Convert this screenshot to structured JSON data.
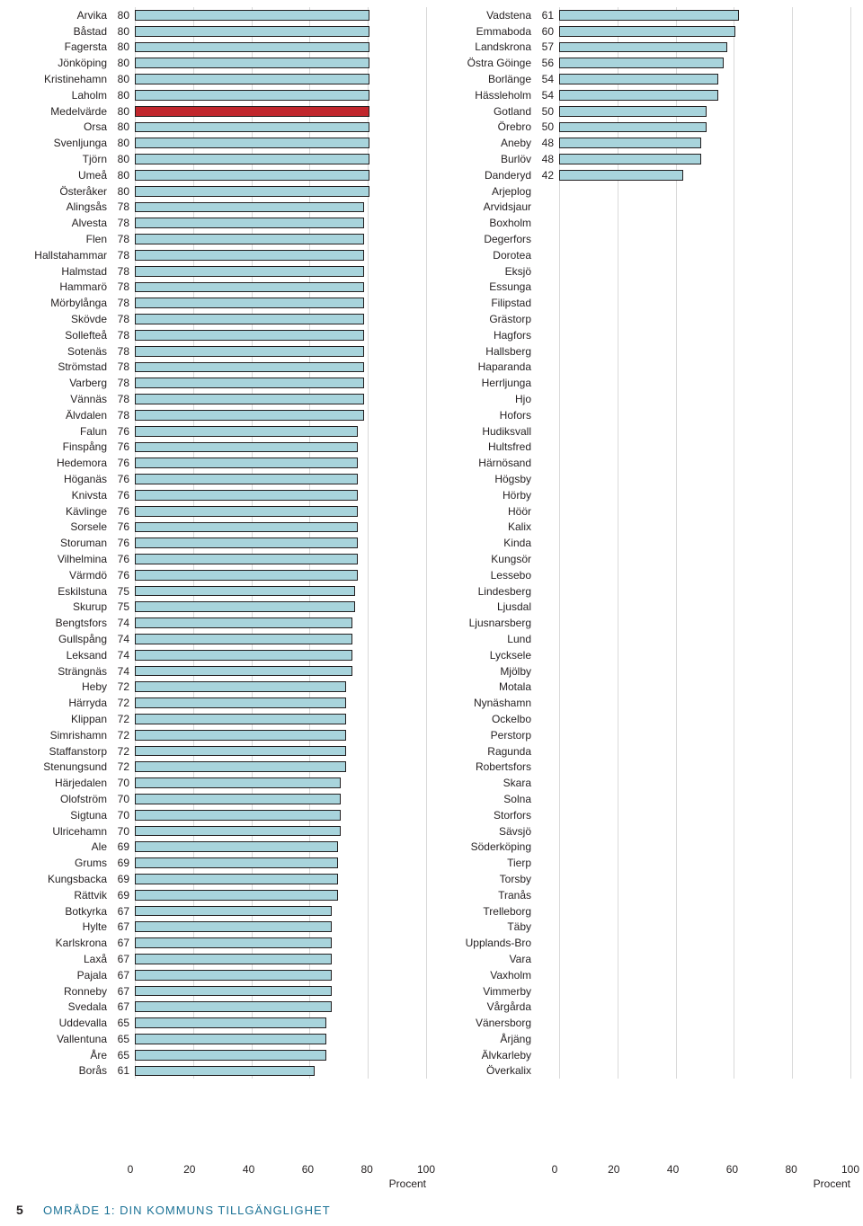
{
  "colors": {
    "bar_fill": "#a8d4dc",
    "bar_highlight": "#c1272d",
    "bar_border": "#231f20",
    "grid": "#d9d9d9",
    "text": "#231f20",
    "title": "#1b7296",
    "background": "#ffffff"
  },
  "axis": {
    "ticks": [
      0,
      20,
      40,
      60,
      80,
      100
    ],
    "xlim": [
      0,
      100
    ],
    "xlabel": "Procent",
    "fontsize": 12
  },
  "footer": {
    "page_number": "5",
    "title": "OMRÅDE 1: DIN KOMMUNS TILLGÄNGLIGHET"
  },
  "left_chart": {
    "type": "bar",
    "rows": [
      {
        "label": "Arvika",
        "value": 80
      },
      {
        "label": "Båstad",
        "value": 80
      },
      {
        "label": "Fagersta",
        "value": 80
      },
      {
        "label": "Jönköping",
        "value": 80
      },
      {
        "label": "Kristinehamn",
        "value": 80
      },
      {
        "label": "Laholm",
        "value": 80
      },
      {
        "label": "Medelvärde",
        "value": 80,
        "highlight": true
      },
      {
        "label": "Orsa",
        "value": 80
      },
      {
        "label": "Svenljunga",
        "value": 80
      },
      {
        "label": "Tjörn",
        "value": 80
      },
      {
        "label": "Umeå",
        "value": 80
      },
      {
        "label": "Österåker",
        "value": 80
      },
      {
        "label": "Alingsås",
        "value": 78
      },
      {
        "label": "Alvesta",
        "value": 78
      },
      {
        "label": "Flen",
        "value": 78
      },
      {
        "label": "Hallstahammar",
        "value": 78
      },
      {
        "label": "Halmstad",
        "value": 78
      },
      {
        "label": "Hammarö",
        "value": 78
      },
      {
        "label": "Mörbylånga",
        "value": 78
      },
      {
        "label": "Skövde",
        "value": 78
      },
      {
        "label": "Sollefteå",
        "value": 78
      },
      {
        "label": "Sotenäs",
        "value": 78
      },
      {
        "label": "Strömstad",
        "value": 78
      },
      {
        "label": "Varberg",
        "value": 78
      },
      {
        "label": "Vännäs",
        "value": 78
      },
      {
        "label": "Älvdalen",
        "value": 78
      },
      {
        "label": "Falun",
        "value": 76
      },
      {
        "label": "Finspång",
        "value": 76
      },
      {
        "label": "Hedemora",
        "value": 76
      },
      {
        "label": "Höganäs",
        "value": 76
      },
      {
        "label": "Knivsta",
        "value": 76
      },
      {
        "label": "Kävlinge",
        "value": 76
      },
      {
        "label": "Sorsele",
        "value": 76
      },
      {
        "label": "Storuman",
        "value": 76
      },
      {
        "label": "Vilhelmina",
        "value": 76
      },
      {
        "label": "Värmdö",
        "value": 76
      },
      {
        "label": "Eskilstuna",
        "value": 75
      },
      {
        "label": "Skurup",
        "value": 75
      },
      {
        "label": "Bengtsfors",
        "value": 74
      },
      {
        "label": "Gullspång",
        "value": 74
      },
      {
        "label": "Leksand",
        "value": 74
      },
      {
        "label": "Strängnäs",
        "value": 74
      },
      {
        "label": "Heby",
        "value": 72
      },
      {
        "label": "Härryda",
        "value": 72
      },
      {
        "label": "Klippan",
        "value": 72
      },
      {
        "label": "Simrishamn",
        "value": 72
      },
      {
        "label": "Staffanstorp",
        "value": 72
      },
      {
        "label": "Stenungsund",
        "value": 72
      },
      {
        "label": "Härjedalen",
        "value": 70
      },
      {
        "label": "Olofström",
        "value": 70
      },
      {
        "label": "Sigtuna",
        "value": 70
      },
      {
        "label": "Ulricehamn",
        "value": 70
      },
      {
        "label": "Ale",
        "value": 69
      },
      {
        "label": "Grums",
        "value": 69
      },
      {
        "label": "Kungsbacka",
        "value": 69
      },
      {
        "label": "Rättvik",
        "value": 69
      },
      {
        "label": "Botkyrka",
        "value": 67
      },
      {
        "label": "Hylte",
        "value": 67
      },
      {
        "label": "Karlskrona",
        "value": 67
      },
      {
        "label": "Laxå",
        "value": 67
      },
      {
        "label": "Pajala",
        "value": 67
      },
      {
        "label": "Ronneby",
        "value": 67
      },
      {
        "label": "Svedala",
        "value": 67
      },
      {
        "label": "Uddevalla",
        "value": 65
      },
      {
        "label": "Vallentuna",
        "value": 65
      },
      {
        "label": "Åre",
        "value": 65
      },
      {
        "label": "Borås",
        "value": 61
      }
    ]
  },
  "right_chart": {
    "type": "bar",
    "rows": [
      {
        "label": "Vadstena",
        "value": 61
      },
      {
        "label": "Emmaboda",
        "value": 60
      },
      {
        "label": "Landskrona",
        "value": 57
      },
      {
        "label": "Östra Göinge",
        "value": 56
      },
      {
        "label": "Borlänge",
        "value": 54
      },
      {
        "label": "Hässleholm",
        "value": 54
      },
      {
        "label": "Gotland",
        "value": 50
      },
      {
        "label": "Örebro",
        "value": 50
      },
      {
        "label": "Aneby",
        "value": 48
      },
      {
        "label": "Burlöv",
        "value": 48
      },
      {
        "label": "Danderyd",
        "value": 42
      },
      {
        "label": "Arjeplog",
        "value": null
      },
      {
        "label": "Arvidsjaur",
        "value": null
      },
      {
        "label": "Boxholm",
        "value": null
      },
      {
        "label": "Degerfors",
        "value": null
      },
      {
        "label": "Dorotea",
        "value": null
      },
      {
        "label": "Eksjö",
        "value": null
      },
      {
        "label": "Essunga",
        "value": null
      },
      {
        "label": "Filipstad",
        "value": null
      },
      {
        "label": "Grästorp",
        "value": null
      },
      {
        "label": "Hagfors",
        "value": null
      },
      {
        "label": "Hallsberg",
        "value": null
      },
      {
        "label": "Haparanda",
        "value": null
      },
      {
        "label": "Herrljunga",
        "value": null
      },
      {
        "label": "Hjo",
        "value": null
      },
      {
        "label": "Hofors",
        "value": null
      },
      {
        "label": "Hudiksvall",
        "value": null
      },
      {
        "label": "Hultsfred",
        "value": null
      },
      {
        "label": "Härnösand",
        "value": null
      },
      {
        "label": "Högsby",
        "value": null
      },
      {
        "label": "Hörby",
        "value": null
      },
      {
        "label": "Höör",
        "value": null
      },
      {
        "label": "Kalix",
        "value": null
      },
      {
        "label": "Kinda",
        "value": null
      },
      {
        "label": "Kungsör",
        "value": null
      },
      {
        "label": "Lessebo",
        "value": null
      },
      {
        "label": "Lindesberg",
        "value": null
      },
      {
        "label": "Ljusdal",
        "value": null
      },
      {
        "label": "Ljusnarsberg",
        "value": null
      },
      {
        "label": "Lund",
        "value": null
      },
      {
        "label": "Lycksele",
        "value": null
      },
      {
        "label": "Mjölby",
        "value": null
      },
      {
        "label": "Motala",
        "value": null
      },
      {
        "label": "Nynäshamn",
        "value": null
      },
      {
        "label": "Ockelbo",
        "value": null
      },
      {
        "label": "Perstorp",
        "value": null
      },
      {
        "label": "Ragunda",
        "value": null
      },
      {
        "label": "Robertsfors",
        "value": null
      },
      {
        "label": "Skara",
        "value": null
      },
      {
        "label": "Solna",
        "value": null
      },
      {
        "label": "Storfors",
        "value": null
      },
      {
        "label": "Sävsjö",
        "value": null
      },
      {
        "label": "Söderköping",
        "value": null
      },
      {
        "label": "Tierp",
        "value": null
      },
      {
        "label": "Torsby",
        "value": null
      },
      {
        "label": "Tranås",
        "value": null
      },
      {
        "label": "Trelleborg",
        "value": null
      },
      {
        "label": "Täby",
        "value": null
      },
      {
        "label": "Upplands-Bro",
        "value": null
      },
      {
        "label": "Vara",
        "value": null
      },
      {
        "label": "Vaxholm",
        "value": null
      },
      {
        "label": "Vimmerby",
        "value": null
      },
      {
        "label": "Vårgårda",
        "value": null
      },
      {
        "label": "Vänersborg",
        "value": null
      },
      {
        "label": "Årjäng",
        "value": null
      },
      {
        "label": "Älvkarleby",
        "value": null
      },
      {
        "label": "Överkalix",
        "value": null
      }
    ]
  }
}
